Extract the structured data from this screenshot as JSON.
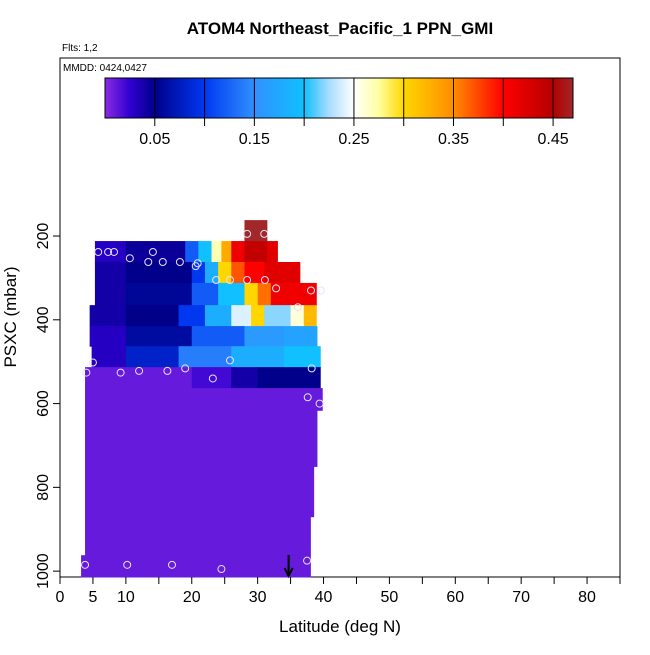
{
  "chart_data": {
    "type": "curtain",
    "title": "ATOM4 Northeast_Pacific_1 PPN_GMI",
    "flights_label": "Flts: 1,2",
    "dates_label": "MMDD: 0424,0427",
    "x_label": "Latitude (deg N)",
    "y_label": "PSXC (mbar)",
    "xlim": [
      0,
      85
    ],
    "xticks": [
      0,
      5,
      10,
      20,
      30,
      40,
      50,
      60,
      70,
      80
    ],
    "xminor_ticks": [
      15,
      25,
      35,
      45,
      55,
      65,
      75,
      85
    ],
    "ylim": [
      1014,
      -225
    ],
    "yticks": [
      200,
      400,
      600,
      800,
      1000
    ],
    "colorbar": {
      "lim": [
        0,
        0.47
      ],
      "ticks": [
        0.05,
        0.15,
        0.25,
        0.35,
        0.45
      ],
      "minor_ticks": [
        0.1,
        0.2,
        0.3,
        0.4
      ],
      "colormap": [
        [
          0,
          "#8a2be2"
        ],
        [
          0.025,
          "#3000d0"
        ],
        [
          0.05,
          "#00008b"
        ],
        [
          0.1,
          "#0038f0"
        ],
        [
          0.15,
          "#3090ff"
        ],
        [
          0.2,
          "#10c0ff"
        ],
        [
          0.225,
          "#a8dcff"
        ],
        [
          0.25,
          "#ffffff"
        ],
        [
          0.275,
          "#ffffa0"
        ],
        [
          0.3,
          "#ffd700"
        ],
        [
          0.35,
          "#ff8c00"
        ],
        [
          0.4,
          "#ff0000"
        ],
        [
          0.45,
          "#b40000"
        ],
        [
          0.47,
          "#a02828"
        ]
      ]
    },
    "cells": [
      [
        28,
        31.4,
        162,
        212,
        0.47
      ],
      [
        5.3,
        10,
        212,
        262,
        0.03
      ],
      [
        10,
        19,
        212,
        262,
        0.045
      ],
      [
        19,
        21,
        212,
        262,
        0.12
      ],
      [
        21,
        23,
        212,
        262,
        0.2
      ],
      [
        23,
        24.5,
        212,
        262,
        0.27
      ],
      [
        24.5,
        26,
        212,
        262,
        0.33
      ],
      [
        26,
        28,
        212,
        262,
        0.41
      ],
      [
        28,
        31.4,
        212,
        262,
        0.44
      ],
      [
        31.4,
        33,
        212,
        262,
        0.42
      ],
      [
        5.3,
        10,
        262,
        312,
        0.04
      ],
      [
        10,
        20,
        262,
        312,
        0.05
      ],
      [
        20,
        22,
        262,
        312,
        0.1
      ],
      [
        22,
        24,
        262,
        312,
        0.18
      ],
      [
        24,
        26,
        262,
        312,
        0.3
      ],
      [
        26,
        28,
        262,
        312,
        0.37
      ],
      [
        28,
        31,
        262,
        312,
        0.4
      ],
      [
        31,
        36.4,
        262,
        312,
        0.42
      ],
      [
        5.3,
        10,
        312,
        365,
        0.04
      ],
      [
        10,
        20,
        312,
        365,
        0.055
      ],
      [
        20,
        24,
        312,
        365,
        0.12
      ],
      [
        24,
        28,
        312,
        365,
        0.2
      ],
      [
        28,
        30,
        312,
        365,
        0.3
      ],
      [
        30,
        32,
        312,
        365,
        0.36
      ],
      [
        32,
        38.9,
        312,
        365,
        0.41
      ],
      [
        4.5,
        10,
        365,
        415,
        0.04
      ],
      [
        10,
        18,
        365,
        415,
        0.05
      ],
      [
        18,
        22,
        365,
        415,
        0.1
      ],
      [
        22,
        26,
        365,
        415,
        0.18
      ],
      [
        26,
        29,
        365,
        415,
        0.24
      ],
      [
        29,
        31,
        365,
        415,
        0.3
      ],
      [
        31,
        35,
        365,
        415,
        0.22
      ],
      [
        35,
        37,
        365,
        415,
        0.26
      ],
      [
        37,
        38.9,
        365,
        415,
        0.32
      ],
      [
        4.5,
        10,
        415,
        463,
        0.03
      ],
      [
        10,
        20,
        415,
        463,
        0.06
      ],
      [
        20,
        28,
        415,
        463,
        0.12
      ],
      [
        28,
        34,
        415,
        463,
        0.16
      ],
      [
        34,
        39,
        415,
        463,
        0.17
      ],
      [
        4.8,
        10,
        463,
        513,
        0.03
      ],
      [
        10,
        18,
        463,
        513,
        0.08
      ],
      [
        18,
        26,
        463,
        513,
        0.14
      ],
      [
        26,
        34,
        463,
        513,
        0.18
      ],
      [
        34,
        39.5,
        463,
        513,
        0.2
      ],
      [
        3.8,
        20,
        513,
        563,
        0.01
      ],
      [
        20,
        26,
        513,
        563,
        0.02
      ],
      [
        26,
        30,
        513,
        563,
        0.04
      ],
      [
        30,
        39.5,
        513,
        563,
        0.05
      ],
      [
        3.8,
        39.8,
        563,
        616,
        0.01
      ],
      [
        3.8,
        39,
        616,
        750,
        0.01
      ],
      [
        3.8,
        38.5,
        750,
        870,
        0.01
      ],
      [
        3.8,
        38,
        870,
        962,
        0.01
      ],
      [
        3.2,
        38,
        962,
        1014,
        0.01
      ]
    ],
    "points": {
      "color": "#e8e0ff",
      "x": [
        28.4,
        31,
        5.8,
        7.3,
        8.2,
        10.6,
        13.4,
        14.1,
        15.6,
        18.2,
        20.6,
        20.9,
        23.7,
        25.8,
        28.4,
        31.1,
        32.8,
        36.1,
        38.1,
        39.6,
        5,
        4,
        9.2,
        12,
        16.3,
        19,
        23.2,
        25.8,
        38.2,
        37.6,
        39.4,
        3.8,
        10.2,
        17,
        24.5,
        37.5
      ],
      "y": [
        195,
        195,
        238,
        238,
        238,
        253,
        262,
        238,
        262,
        262,
        272,
        265,
        305,
        305,
        305,
        305,
        325,
        370,
        330,
        330,
        502,
        526,
        526,
        522,
        522,
        516,
        540,
        497,
        516,
        585,
        600,
        985,
        985,
        985,
        995,
        975
      ]
    },
    "flight_marker_lat": 34.7
  }
}
